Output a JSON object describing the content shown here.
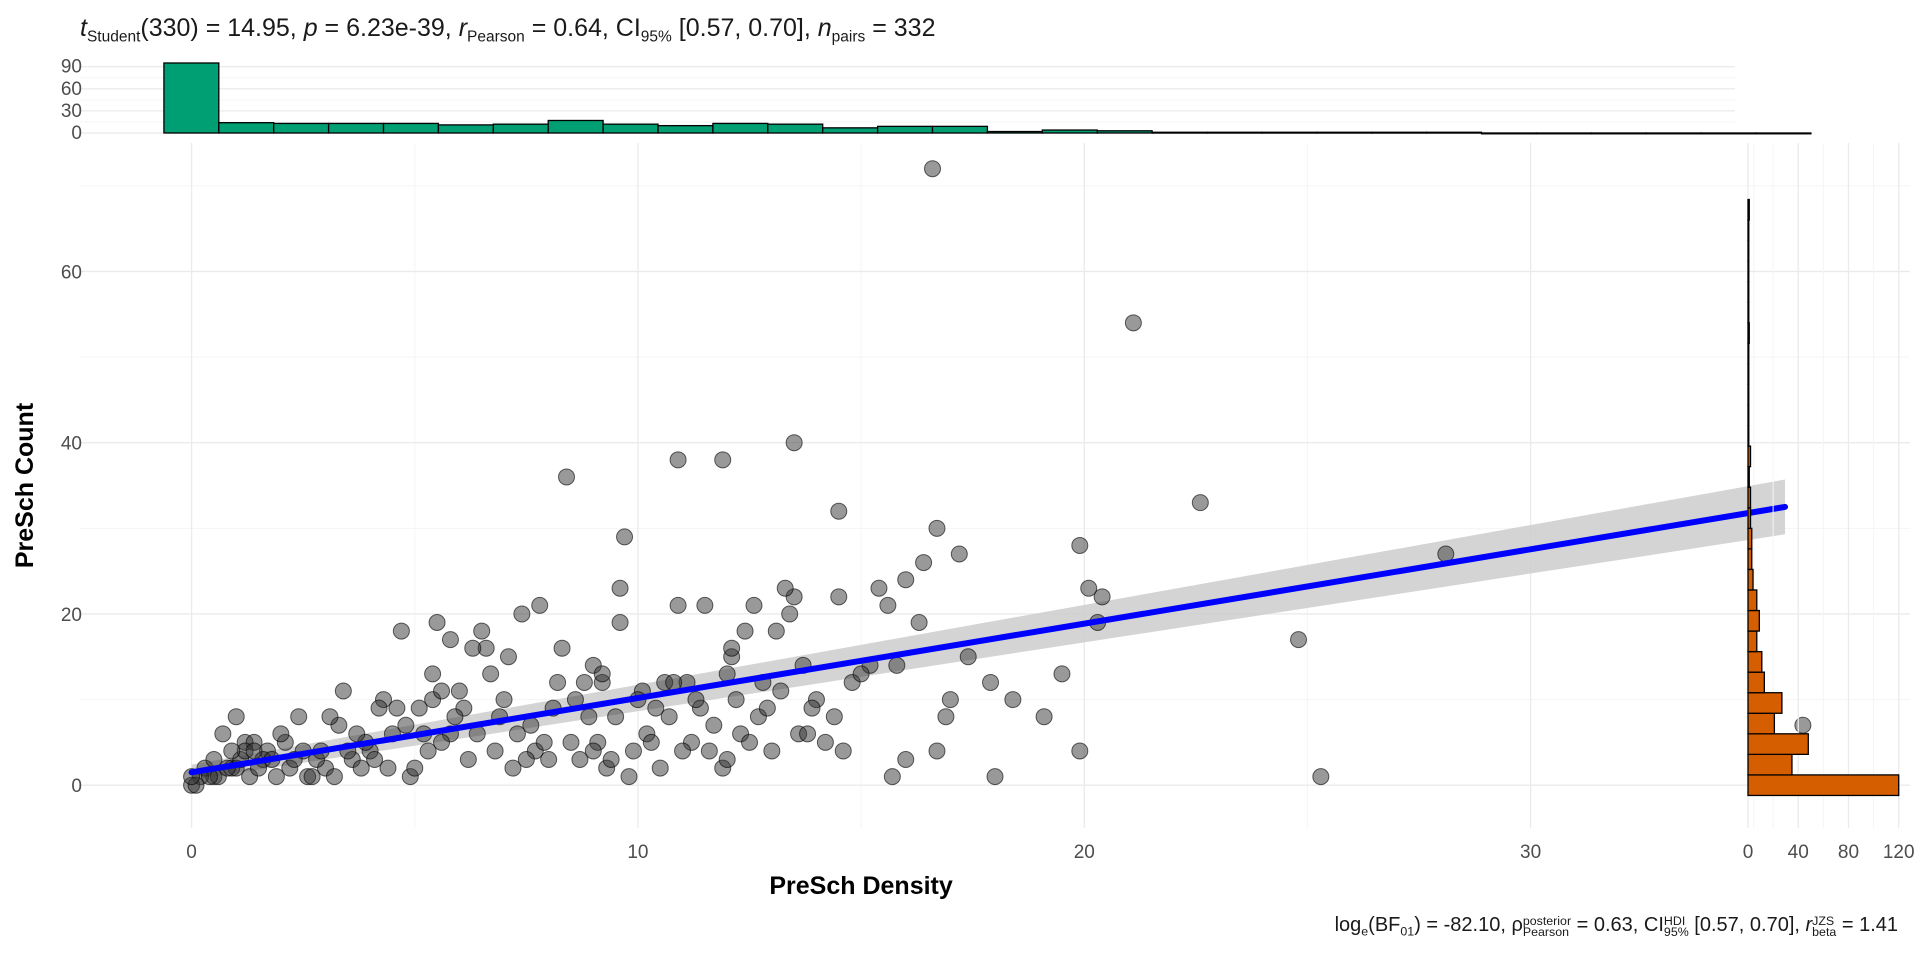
{
  "header": {
    "t_symbol": "t",
    "t_sub": "Student",
    "t_value": "(330) = 14.95, ",
    "p_symbol": "p",
    "p_value": " = 6.23e-39, ",
    "r_symbol": "r",
    "r_hat": "^",
    "r_sub": "Pearson",
    "r_value": " = 0.64, CI",
    "ci_sub": "95%",
    "ci_value": " [0.57, 0.70], ",
    "n_symbol": "n",
    "n_sub": "pairs",
    "n_value": " = 332"
  },
  "footer": {
    "log_text": "log",
    "log_sub": "e",
    "bf_text": "(BF",
    "bf_sub": "01",
    "bf_value": ") = -82.10, ",
    "rho_symbol": "ρ",
    "rho_hat": "^",
    "rho_sup": "posterior",
    "rho_sub": "Pearson",
    "rho_value": " = 0.63, CI",
    "ci_sup": "HDI",
    "ci_sub": "95%",
    "ci_value": " [0.57, 0.70], ",
    "r_symbol": "r",
    "r_sup": "JZS",
    "r_sub": "beta",
    "r_value": " = 1.41"
  },
  "colors": {
    "top_hist": "#009e73",
    "right_hist": "#d55e00",
    "points": "#333333",
    "line": "#0000ff",
    "ribbon": "#cccccc"
  },
  "chart_data": [
    {
      "type": "scatter",
      "xlabel": "PreSch Density",
      "ylabel": "PreSch Count",
      "xlim": [
        -2.5,
        38.5
      ],
      "ylim": [
        -5,
        75
      ],
      "x_ticks": [
        0,
        10,
        20,
        30
      ],
      "y_ticks": [
        0,
        20,
        40,
        60
      ],
      "grid": true,
      "points": [
        [
          16.6,
          72
        ],
        [
          21.1,
          54
        ],
        [
          8.4,
          36
        ],
        [
          10.9,
          38
        ],
        [
          11.9,
          38
        ],
        [
          13.5,
          40
        ],
        [
          22.6,
          33
        ],
        [
          14.5,
          32
        ],
        [
          9.7,
          29
        ],
        [
          16.7,
          30
        ],
        [
          28.1,
          27
        ],
        [
          17.2,
          27
        ],
        [
          16.4,
          26
        ],
        [
          16.0,
          24
        ],
        [
          15.6,
          21
        ],
        [
          15.4,
          23
        ],
        [
          19.9,
          28
        ],
        [
          20.1,
          23
        ],
        [
          20.4,
          22
        ],
        [
          20.3,
          19
        ],
        [
          24.8,
          17
        ],
        [
          19.5,
          13
        ],
        [
          18.4,
          10
        ],
        [
          19.1,
          8
        ],
        [
          17.0,
          10
        ],
        [
          16.9,
          8
        ],
        [
          17.9,
          12
        ],
        [
          17.4,
          15
        ],
        [
          16.7,
          4
        ],
        [
          18.0,
          1
        ],
        [
          15.7,
          1
        ],
        [
          16.0,
          3
        ],
        [
          19.9,
          4
        ],
        [
          25.3,
          1
        ],
        [
          35.5,
          5
        ],
        [
          36.1,
          7
        ],
        [
          14.5,
          22
        ],
        [
          13.5,
          22
        ],
        [
          13.4,
          20
        ],
        [
          13.3,
          23
        ],
        [
          13.1,
          18
        ],
        [
          12.4,
          18
        ],
        [
          12.6,
          21
        ],
        [
          13.7,
          14
        ],
        [
          12.1,
          15
        ],
        [
          12.1,
          16
        ],
        [
          12.0,
          13
        ],
        [
          11.5,
          21
        ],
        [
          10.9,
          21
        ],
        [
          10.6,
          12
        ],
        [
          10.1,
          11
        ],
        [
          9.6,
          23
        ],
        [
          9.6,
          19
        ],
        [
          9.0,
          14
        ],
        [
          9.2,
          12
        ],
        [
          8.8,
          12
        ],
        [
          8.3,
          16
        ],
        [
          7.8,
          21
        ],
        [
          7.4,
          20
        ],
        [
          7.1,
          15
        ],
        [
          6.7,
          13
        ],
        [
          6.5,
          18
        ],
        [
          6.6,
          16
        ],
        [
          6.3,
          16
        ],
        [
          5.8,
          17
        ],
        [
          5.5,
          19
        ],
        [
          5.4,
          13
        ],
        [
          5.4,
          10
        ],
        [
          5.6,
          11
        ],
        [
          4.7,
          18
        ],
        [
          4.3,
          10
        ],
        [
          4.6,
          9
        ],
        [
          3.4,
          11
        ],
        [
          3.3,
          7
        ],
        [
          3.1,
          8
        ],
        [
          2.4,
          8
        ],
        [
          2.1,
          5
        ],
        [
          1.7,
          4
        ],
        [
          1.0,
          8
        ],
        [
          0.7,
          6
        ],
        [
          1.2,
          5
        ],
        [
          1.6,
          3
        ],
        [
          1.4,
          5
        ],
        [
          0.9,
          2
        ],
        [
          0.5,
          1
        ],
        [
          0.3,
          2
        ],
        [
          0.2,
          1
        ],
        [
          0.0,
          0
        ],
        [
          0.1,
          0
        ],
        [
          0.0,
          1
        ],
        [
          0.6,
          1
        ],
        [
          1.0,
          2
        ],
        [
          1.3,
          1
        ],
        [
          1.8,
          3
        ],
        [
          2.2,
          2
        ],
        [
          2.6,
          1
        ],
        [
          3.0,
          2
        ],
        [
          3.6,
          3
        ],
        [
          4.0,
          4
        ],
        [
          4.4,
          2
        ],
        [
          4.9,
          1
        ],
        [
          5.3,
          4
        ],
        [
          5.8,
          6
        ],
        [
          6.1,
          9
        ],
        [
          6.9,
          8
        ],
        [
          7.3,
          6
        ],
        [
          7.7,
          4
        ],
        [
          8.0,
          3
        ],
        [
          8.5,
          5
        ],
        [
          8.9,
          8
        ],
        [
          9.1,
          5
        ],
        [
          9.3,
          2
        ],
        [
          9.8,
          1
        ],
        [
          10.2,
          6
        ],
        [
          10.4,
          9
        ],
        [
          10.7,
          8
        ],
        [
          11.2,
          5
        ],
        [
          11.6,
          4
        ],
        [
          11.9,
          2
        ],
        [
          12.3,
          6
        ],
        [
          12.7,
          8
        ],
        [
          13.0,
          4
        ],
        [
          13.6,
          6
        ],
        [
          14.0,
          10
        ],
        [
          14.4,
          8
        ],
        [
          14.8,
          12
        ],
        [
          15.2,
          14
        ],
        [
          15.0,
          13
        ],
        [
          12.8,
          12
        ],
        [
          12.2,
          10
        ],
        [
          11.4,
          9
        ],
        [
          10.0,
          10
        ],
        [
          9.5,
          8
        ],
        [
          8.6,
          10
        ],
        [
          8.1,
          9
        ],
        [
          7.6,
          7
        ],
        [
          7.0,
          10
        ],
        [
          6.4,
          6
        ],
        [
          5.9,
          8
        ],
        [
          5.1,
          9
        ],
        [
          4.5,
          6
        ],
        [
          3.9,
          5
        ],
        [
          3.5,
          4
        ],
        [
          2.8,
          3
        ],
        [
          2.5,
          4
        ],
        [
          2.0,
          6
        ],
        [
          1.5,
          2
        ],
        [
          1.1,
          3
        ],
        [
          0.8,
          2
        ],
        [
          0.4,
          1
        ],
        [
          13.8,
          6
        ],
        [
          14.6,
          4
        ],
        [
          12.5,
          5
        ],
        [
          11.7,
          7
        ],
        [
          11.0,
          4
        ],
        [
          10.5,
          2
        ],
        [
          9.4,
          3
        ],
        [
          8.7,
          3
        ],
        [
          7.9,
          5
        ],
        [
          7.2,
          2
        ],
        [
          6.8,
          4
        ],
        [
          6.2,
          3
        ],
        [
          5.6,
          5
        ],
        [
          5.0,
          2
        ],
        [
          4.1,
          3
        ],
        [
          3.2,
          1
        ],
        [
          2.9,
          4
        ],
        [
          2.3,
          3
        ],
        [
          1.9,
          1
        ],
        [
          1.2,
          4
        ],
        [
          3.8,
          2
        ],
        [
          4.8,
          7
        ],
        [
          9.0,
          4
        ],
        [
          10.3,
          5
        ],
        [
          11.1,
          12
        ],
        [
          12.9,
          9
        ],
        [
          13.2,
          11
        ],
        [
          14.2,
          5
        ],
        [
          16.3,
          19
        ],
        [
          15.8,
          14
        ],
        [
          8.2,
          12
        ],
        [
          7.5,
          3
        ],
        [
          6.0,
          11
        ],
        [
          5.2,
          6
        ],
        [
          4.2,
          9
        ],
        [
          3.7,
          6
        ],
        [
          2.7,
          1
        ],
        [
          1.4,
          4
        ],
        [
          0.9,
          4
        ],
        [
          0.5,
          3
        ],
        [
          9.9,
          4
        ],
        [
          11.3,
          10
        ],
        [
          13.9,
          9
        ],
        [
          12.0,
          3
        ],
        [
          10.8,
          12
        ],
        [
          9.2,
          13
        ]
      ],
      "fit_line": {
        "x": [
          0,
          35.7
        ],
        "y": [
          1.5,
          32.5
        ]
      },
      "ci_ribbon": {
        "x": [
          0,
          35.7
        ],
        "lower": [
          0.6,
          29.3
        ],
        "upper": [
          2.4,
          35.7
        ]
      }
    },
    {
      "type": "bar",
      "title": "",
      "orientation": "vertical",
      "y_ticks": [
        0,
        30,
        60,
        90
      ],
      "ylim": [
        0,
        95
      ],
      "bin_width": 1.23,
      "bin_start": -0.62,
      "counts": [
        95,
        14,
        13,
        13,
        13,
        11,
        12,
        17,
        12,
        10,
        13,
        12,
        7,
        9,
        9,
        2,
        4,
        3,
        1,
        1,
        1,
        1,
        1,
        1,
        0,
        0,
        0,
        0,
        0,
        0
      ]
    },
    {
      "type": "bar",
      "title": "",
      "orientation": "horizontal",
      "x_ticks": [
        0,
        40,
        80,
        120
      ],
      "xlim": [
        0,
        125
      ],
      "bin_width": 2.4,
      "bin_start": -1.2,
      "counts": [
        120,
        35,
        48,
        21,
        27,
        13,
        11,
        7,
        9,
        7,
        4,
        3,
        3,
        2,
        2,
        1,
        2,
        0,
        0,
        0,
        0,
        0,
        1,
        0,
        0,
        0,
        0,
        0,
        1
      ]
    }
  ]
}
